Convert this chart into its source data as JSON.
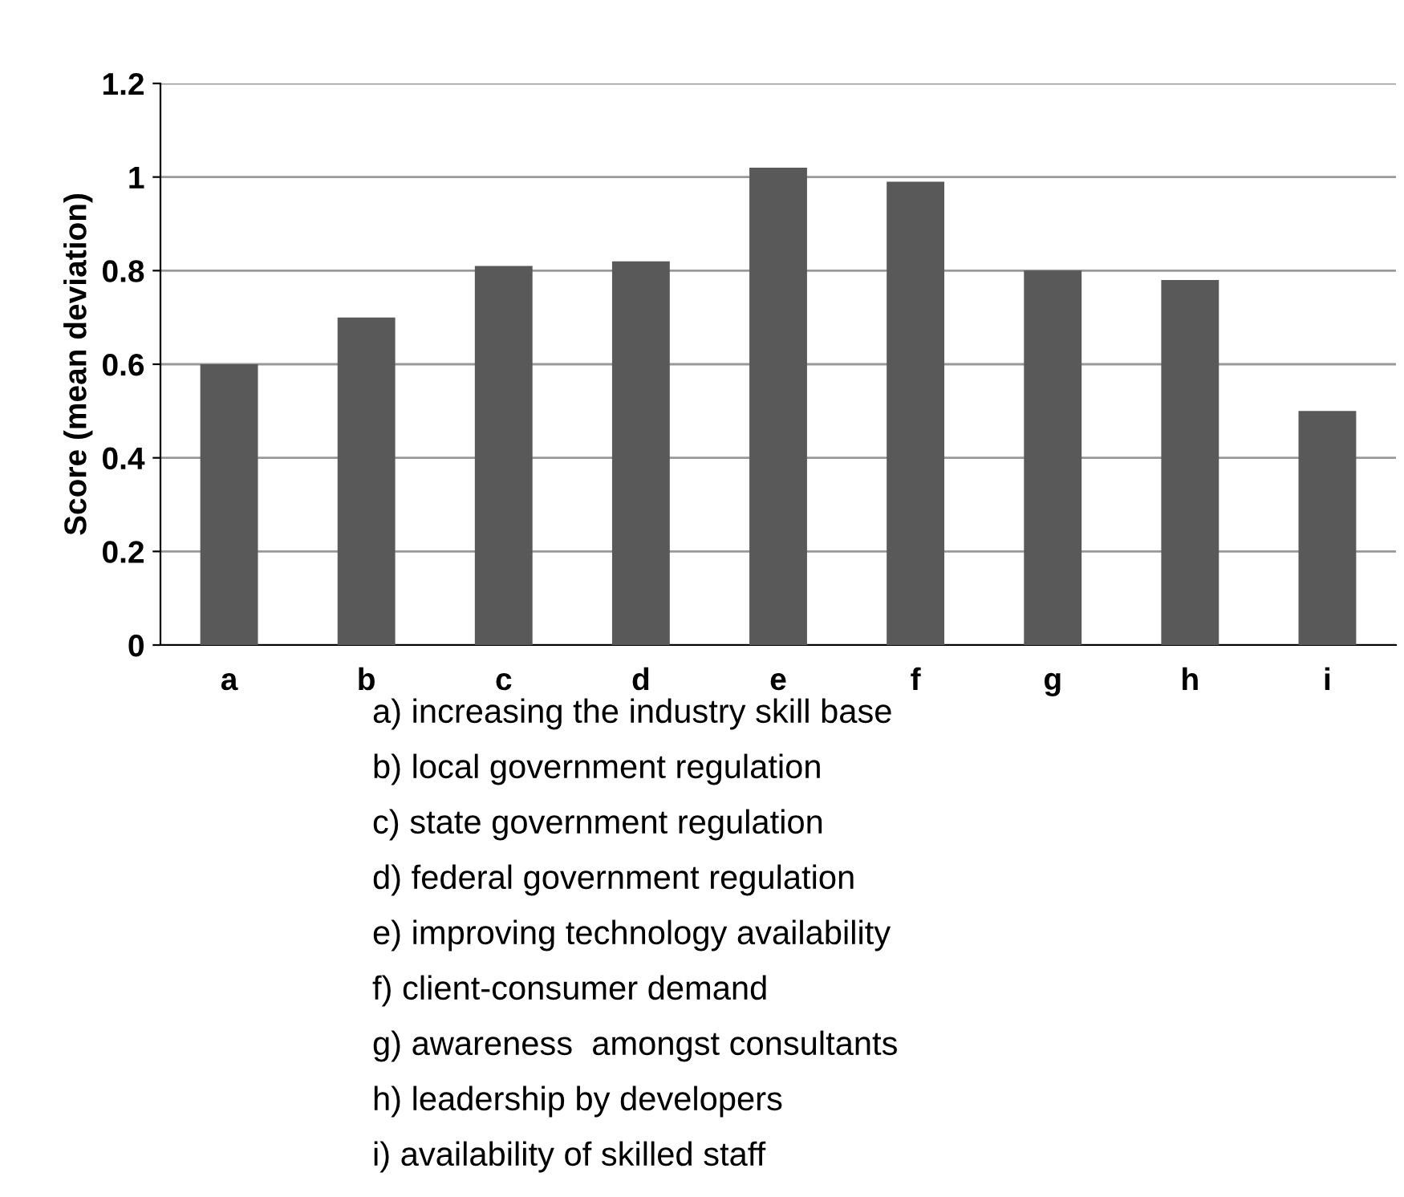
{
  "chart_data": {
    "type": "bar",
    "ylabel": "Score (mean deviation)",
    "categories": [
      "a",
      "b",
      "c",
      "d",
      "e",
      "f",
      "g",
      "h",
      "i"
    ],
    "values": [
      0.6,
      0.7,
      0.81,
      0.82,
      1.02,
      0.99,
      0.8,
      0.78,
      0.5
    ],
    "color": "#595959",
    "ylim": [
      0,
      1.2
    ],
    "yticks": [
      0,
      0.2,
      0.4,
      0.6,
      0.8,
      1,
      1.2
    ],
    "grid": "y",
    "annotations": [
      "a) increasing the industry skill base",
      "b) local government regulation",
      "c) state government regulation",
      "d) federal government regulation",
      "e) improving technology availability",
      "f) client-consumer demand",
      "g) awareness  amongst consultants",
      "h) leadership by developers",
      "i) availability of skilled staff"
    ]
  }
}
